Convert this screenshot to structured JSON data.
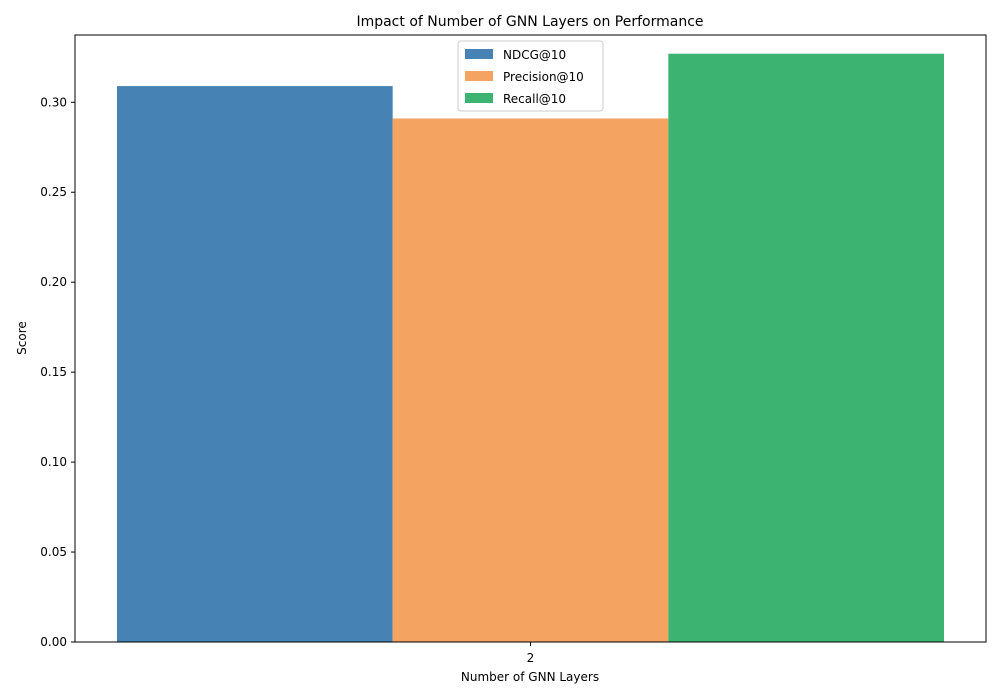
{
  "chart_data": {
    "type": "bar",
    "title": "Impact of Number of GNN Layers on Performance",
    "xlabel": "Number of GNN Layers",
    "ylabel": "Score",
    "categories": [
      "2"
    ],
    "ylim": [
      0,
      0.3374
    ],
    "yticks": [
      0.0,
      0.05,
      0.1,
      0.15,
      0.2,
      0.25,
      0.3
    ],
    "ytick_labels": [
      "0.00",
      "0.05",
      "0.10",
      "0.15",
      "0.20",
      "0.25",
      "0.30"
    ],
    "grid": false,
    "legend_position": "top-center",
    "series": [
      {
        "name": "NDCG@10",
        "values": [
          0.309
        ],
        "color": "#4682b4"
      },
      {
        "name": "Precision@10",
        "values": [
          0.291
        ],
        "color": "#f4a460"
      },
      {
        "name": "Recall@10",
        "values": [
          0.327
        ],
        "color": "#3cb371"
      }
    ]
  }
}
